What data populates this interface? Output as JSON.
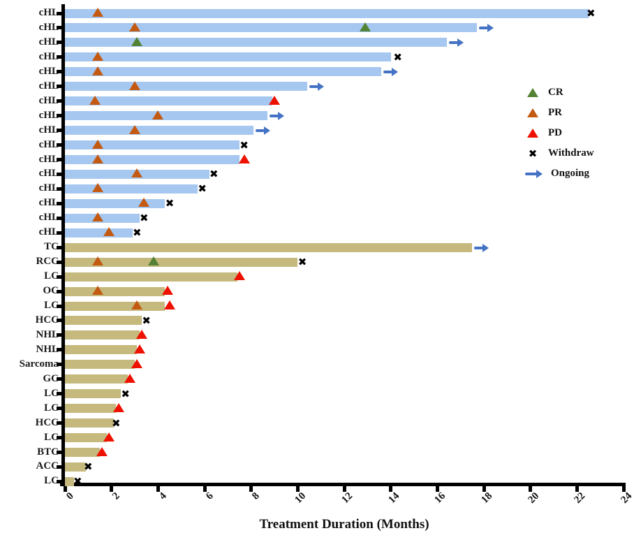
{
  "chart_data": {
    "type": "bar",
    "variant": "swimmer-plot-horizontal",
    "title": "",
    "xlabel": "Treatment Duration (Months)",
    "ylabel": "",
    "xlim": [
      0,
      24
    ],
    "xticks": [
      0,
      2,
      4,
      6,
      8,
      10,
      12,
      14,
      16,
      18,
      20,
      22,
      24
    ],
    "grid": false,
    "legend_position": "right-upper",
    "legend": [
      {
        "key": "CR",
        "label": "CR",
        "marker": "triangle",
        "color": "#548235"
      },
      {
        "key": "PR",
        "label": "PR",
        "marker": "triangle",
        "color": "#C45A12"
      },
      {
        "key": "PD",
        "label": "PD",
        "marker": "triangle",
        "color": "#EE1100"
      },
      {
        "key": "Withdraw",
        "label": "Withdraw",
        "marker": "x",
        "color": "#000000"
      },
      {
        "key": "Ongoing",
        "label": "Ongoing",
        "marker": "arrow",
        "color": "#4472C4"
      }
    ],
    "bar_colors": {
      "cHL": "#A6C8F0",
      "other": "#C5B97D"
    },
    "withdraw_glyph": "✖",
    "rows": [
      {
        "label": "cHL",
        "group": "cHL",
        "duration": 22.5,
        "ongoing": false,
        "markers": [
          {
            "type": "PR",
            "x": 1.4
          },
          {
            "type": "Withdraw",
            "x": 22.6
          }
        ]
      },
      {
        "label": "cHL",
        "group": "cHL",
        "duration": 17.7,
        "ongoing": true,
        "markers": [
          {
            "type": "PR",
            "x": 3.0
          },
          {
            "type": "CR",
            "x": 12.9
          }
        ]
      },
      {
        "label": "cHL",
        "group": "cHL",
        "duration": 16.4,
        "ongoing": true,
        "markers": [
          {
            "type": "CR",
            "x": 3.1
          }
        ]
      },
      {
        "label": "cHL",
        "group": "cHL",
        "duration": 14.0,
        "ongoing": false,
        "markers": [
          {
            "type": "PR",
            "x": 1.4
          },
          {
            "type": "Withdraw",
            "x": 14.3
          }
        ]
      },
      {
        "label": "cHL",
        "group": "cHL",
        "duration": 13.6,
        "ongoing": true,
        "markers": [
          {
            "type": "PR",
            "x": 1.4
          }
        ]
      },
      {
        "label": "cHL",
        "group": "cHL",
        "duration": 10.4,
        "ongoing": true,
        "markers": [
          {
            "type": "PR",
            "x": 3.0
          }
        ]
      },
      {
        "label": "cHL",
        "group": "cHL",
        "duration": 8.9,
        "ongoing": false,
        "markers": [
          {
            "type": "PR",
            "x": 1.3
          },
          {
            "type": "PD",
            "x": 9.0
          }
        ]
      },
      {
        "label": "cHL",
        "group": "cHL",
        "duration": 8.7,
        "ongoing": true,
        "markers": [
          {
            "type": "PR",
            "x": 4.0
          }
        ]
      },
      {
        "label": "cHL",
        "group": "cHL",
        "duration": 8.1,
        "ongoing": true,
        "markers": [
          {
            "type": "PR",
            "x": 3.0
          }
        ]
      },
      {
        "label": "cHL",
        "group": "cHL",
        "duration": 7.5,
        "ongoing": false,
        "markers": [
          {
            "type": "PR",
            "x": 1.4
          },
          {
            "type": "Withdraw",
            "x": 7.7
          }
        ]
      },
      {
        "label": "cHL",
        "group": "cHL",
        "duration": 7.5,
        "ongoing": false,
        "markers": [
          {
            "type": "PR",
            "x": 1.4
          },
          {
            "type": "PD",
            "x": 7.7
          }
        ]
      },
      {
        "label": "cHL",
        "group": "cHL",
        "duration": 6.2,
        "ongoing": false,
        "markers": [
          {
            "type": "PR",
            "x": 3.1
          },
          {
            "type": "Withdraw",
            "x": 6.4
          }
        ]
      },
      {
        "label": "cHL",
        "group": "cHL",
        "duration": 5.7,
        "ongoing": false,
        "markers": [
          {
            "type": "PR",
            "x": 1.4
          },
          {
            "type": "Withdraw",
            "x": 5.9
          }
        ]
      },
      {
        "label": "cHL",
        "group": "cHL",
        "duration": 4.3,
        "ongoing": false,
        "markers": [
          {
            "type": "PR",
            "x": 3.4
          },
          {
            "type": "Withdraw",
            "x": 4.5
          }
        ]
      },
      {
        "label": "cHL",
        "group": "cHL",
        "duration": 3.2,
        "ongoing": false,
        "markers": [
          {
            "type": "PR",
            "x": 1.4
          },
          {
            "type": "Withdraw",
            "x": 3.4
          }
        ]
      },
      {
        "label": "cHL",
        "group": "cHL",
        "duration": 2.9,
        "ongoing": false,
        "markers": [
          {
            "type": "PR",
            "x": 1.9
          },
          {
            "type": "Withdraw",
            "x": 3.1
          }
        ]
      },
      {
        "label": "TC",
        "group": "other",
        "duration": 17.5,
        "ongoing": true,
        "markers": []
      },
      {
        "label": "RCC",
        "group": "other",
        "duration": 10.0,
        "ongoing": false,
        "markers": [
          {
            "type": "PR",
            "x": 1.4
          },
          {
            "type": "CR",
            "x": 3.8
          },
          {
            "type": "Withdraw",
            "x": 10.2
          }
        ]
      },
      {
        "label": "LC",
        "group": "other",
        "duration": 7.4,
        "ongoing": false,
        "markers": [
          {
            "type": "PD",
            "x": 7.5
          }
        ]
      },
      {
        "label": "OC",
        "group": "other",
        "duration": 4.3,
        "ongoing": false,
        "markers": [
          {
            "type": "PR",
            "x": 1.4
          },
          {
            "type": "PD",
            "x": 4.4
          }
        ]
      },
      {
        "label": "LC",
        "group": "other",
        "duration": 4.3,
        "ongoing": false,
        "markers": [
          {
            "type": "PR",
            "x": 3.1
          },
          {
            "type": "PD",
            "x": 4.5
          }
        ]
      },
      {
        "label": "HCC",
        "group": "other",
        "duration": 3.3,
        "ongoing": false,
        "markers": [
          {
            "type": "Withdraw",
            "x": 3.5
          }
        ]
      },
      {
        "label": "NHL",
        "group": "other",
        "duration": 3.2,
        "ongoing": false,
        "markers": [
          {
            "type": "PD",
            "x": 3.3
          }
        ]
      },
      {
        "label": "NHL",
        "group": "other",
        "duration": 3.1,
        "ongoing": false,
        "markers": [
          {
            "type": "PD",
            "x": 3.2
          }
        ]
      },
      {
        "label": "Sarcoma",
        "group": "other",
        "duration": 3.0,
        "ongoing": false,
        "markers": [
          {
            "type": "PD",
            "x": 3.1
          }
        ]
      },
      {
        "label": "GC",
        "group": "other",
        "duration": 2.7,
        "ongoing": false,
        "markers": [
          {
            "type": "PD",
            "x": 2.8
          }
        ]
      },
      {
        "label": "LC",
        "group": "other",
        "duration": 2.4,
        "ongoing": false,
        "markers": [
          {
            "type": "Withdraw",
            "x": 2.6
          }
        ]
      },
      {
        "label": "LC",
        "group": "other",
        "duration": 2.2,
        "ongoing": false,
        "markers": [
          {
            "type": "PD",
            "x": 2.3
          }
        ]
      },
      {
        "label": "HCC",
        "group": "other",
        "duration": 2.1,
        "ongoing": false,
        "markers": [
          {
            "type": "Withdraw",
            "x": 2.2
          }
        ]
      },
      {
        "label": "LC",
        "group": "other",
        "duration": 1.8,
        "ongoing": false,
        "markers": [
          {
            "type": "PD",
            "x": 1.9
          }
        ]
      },
      {
        "label": "BTC",
        "group": "other",
        "duration": 1.5,
        "ongoing": false,
        "markers": [
          {
            "type": "PD",
            "x": 1.6
          }
        ]
      },
      {
        "label": "ACC",
        "group": "other",
        "duration": 0.9,
        "ongoing": false,
        "markers": [
          {
            "type": "Withdraw",
            "x": 1.0
          }
        ]
      },
      {
        "label": "LC",
        "group": "other",
        "duration": 0.4,
        "ongoing": false,
        "markers": [
          {
            "type": "Withdraw",
            "x": 0.55
          }
        ]
      }
    ]
  }
}
